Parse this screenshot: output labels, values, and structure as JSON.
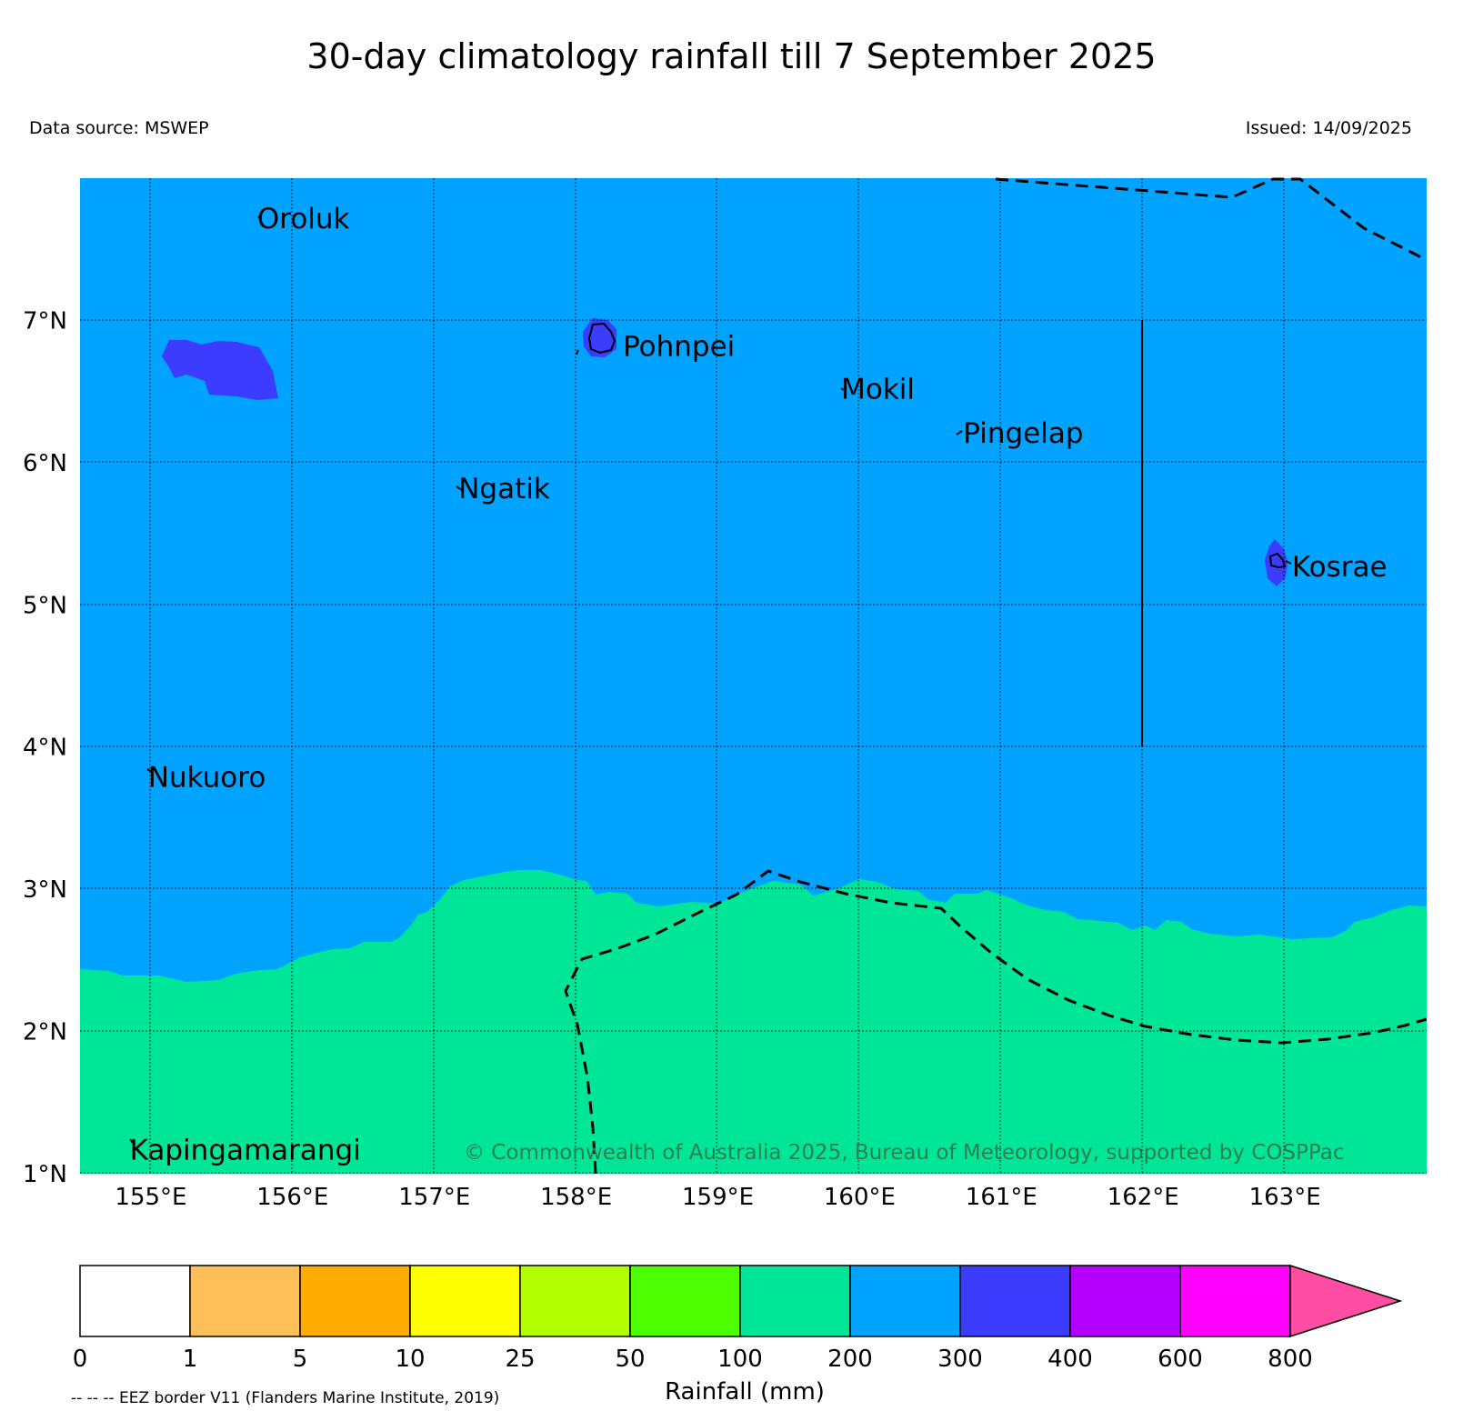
{
  "title": "30-day climatology rainfall till 7 September 2025",
  "data_source": "Data source: MSWEP",
  "issued": "Issued: 14/09/2025",
  "copyright": "© Commonwealth of Australia 2025, Bureau of Meteorology, supported by COSPPac",
  "eez_note": "-- -- -- EEZ border V11 (Flanders Marine Institute, 2019)",
  "colorbar": {
    "title": "Rainfall (mm)",
    "ticks": [
      "0",
      "1",
      "5",
      "10",
      "25",
      "50",
      "100",
      "200",
      "300",
      "400",
      "600",
      "800"
    ],
    "colors": [
      "#ffffff",
      "#ffc05a",
      "#ffab00",
      "#ffff00",
      "#b3ff00",
      "#4dff00",
      "#00e699",
      "#00a3ff",
      "#3c3cff",
      "#b400ff",
      "#ff00ff",
      "#ff4da3"
    ]
  },
  "axes": {
    "lon_labels": [
      "155°E",
      "156°E",
      "157°E",
      "158°E",
      "159°E",
      "160°E",
      "161°E",
      "162°E",
      "163°E"
    ],
    "lat_labels": [
      "7°N",
      "6°N",
      "5°N",
      "4°N",
      "3°N",
      "2°N",
      "1°N"
    ],
    "lon_range": [
      154.5,
      164.0
    ],
    "lat_range": [
      1.0,
      8.0
    ]
  },
  "places": [
    {
      "name": "Oroluk",
      "lon": 155.75,
      "lat": 7.65
    },
    {
      "name": "Pohnpei",
      "lon": 158.33,
      "lat": 6.75
    },
    {
      "name": "Mokil",
      "lon": 159.87,
      "lat": 6.45
    },
    {
      "name": "Pingelap",
      "lon": 160.73,
      "lat": 6.14
    },
    {
      "name": "Ngatik",
      "lon": 157.17,
      "lat": 5.75
    },
    {
      "name": "Kosrae",
      "lon": 163.05,
      "lat": 5.2
    },
    {
      "name": "Nukuoro",
      "lon": 154.98,
      "lat": 3.72
    },
    {
      "name": "Kapingamarangi",
      "lon": 154.85,
      "lat": 1.1
    }
  ],
  "regions": {
    "background_class": "200-300",
    "background_color": "#00a3ff",
    "south_class": "100-200",
    "south_color": "#00e699",
    "hotspot_class": "300-400",
    "hotspot_color": "#3c3cff"
  },
  "eez_border_style": "dashed"
}
